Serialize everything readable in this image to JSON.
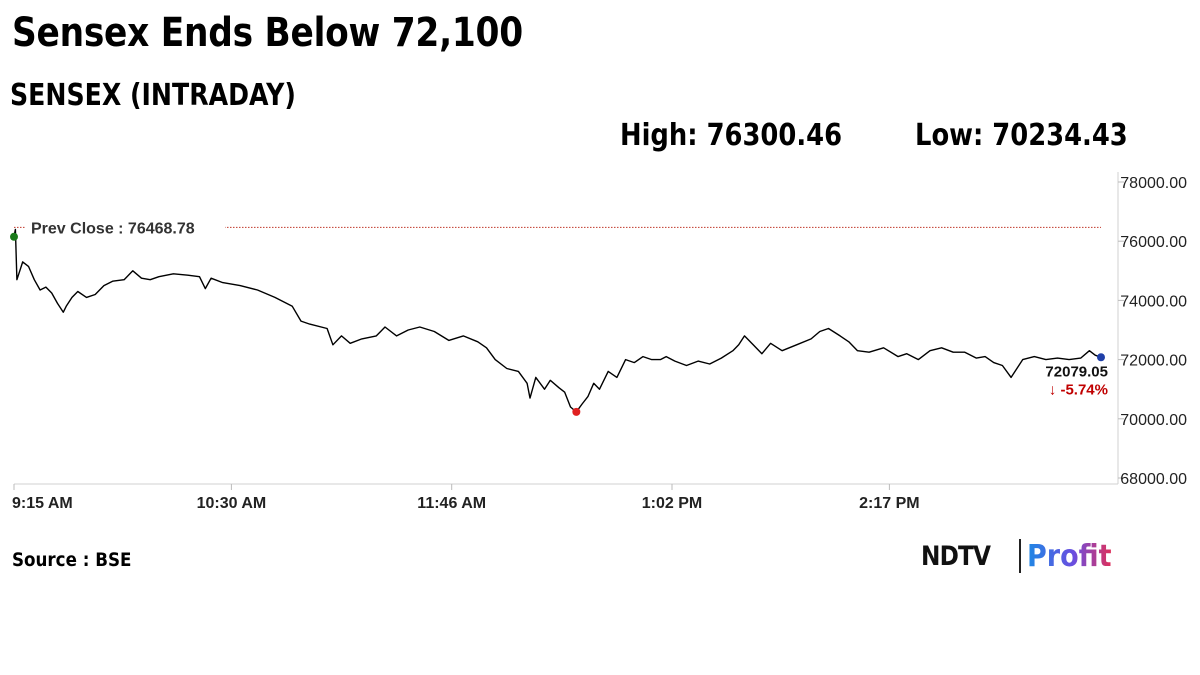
{
  "headline": "Sensex Ends Below 72,100",
  "source_label": "Source : BSE",
  "brand": {
    "name": "NDTV",
    "product": "Profit"
  },
  "colors": {
    "line": "#000000",
    "prev_close_line": "#c0392b",
    "open_marker": "#1a7a1a",
    "low_marker": "#e02020",
    "last_marker": "#1f3fa8",
    "change_text": "#c00000",
    "axis": "#d0d0d0"
  },
  "chart_data": {
    "type": "line",
    "title": "SENSEX (INTRADAY)",
    "high_label": "High: 76300.46",
    "low_label": "Low: 70234.43",
    "xlabel": "",
    "ylabel": "",
    "ylim": [
      68000,
      78000
    ],
    "y_ticks": [
      "78000.00",
      "76000.00",
      "74000.00",
      "72000.00",
      "70000.00",
      "68000.00"
    ],
    "x_ticks": [
      "9:15 AM",
      "10:30 AM",
      "11:46 AM",
      "1:02 PM",
      "2:17 PM"
    ],
    "x_tick_minutes": [
      0,
      75,
      151,
      227,
      302
    ],
    "x_range_minutes": [
      0,
      375
    ],
    "grid": false,
    "prev_close": {
      "label": "Prev Close : 76468.78",
      "value": 76468.78
    },
    "last": {
      "value_label": "72079.05",
      "change_label": "-5.74%",
      "change_arrow": "↓"
    },
    "series": [
      {
        "points": [
          [
            0,
            76150
          ],
          [
            0.5,
            76400
          ],
          [
            1,
            74700
          ],
          [
            2,
            75000
          ],
          [
            3,
            75300
          ],
          [
            5,
            75150
          ],
          [
            7,
            74700
          ],
          [
            9,
            74350
          ],
          [
            11,
            74450
          ],
          [
            13,
            74250
          ],
          [
            15,
            73900
          ],
          [
            17,
            73600
          ],
          [
            18,
            73800
          ],
          [
            20,
            74100
          ],
          [
            22,
            74300
          ],
          [
            25,
            74100
          ],
          [
            28,
            74200
          ],
          [
            31,
            74500
          ],
          [
            34,
            74650
          ],
          [
            38,
            74700
          ],
          [
            41,
            75000
          ],
          [
            44,
            74750
          ],
          [
            47,
            74700
          ],
          [
            50,
            74800
          ],
          [
            55,
            74900
          ],
          [
            60,
            74850
          ],
          [
            64,
            74800
          ],
          [
            66,
            74400
          ],
          [
            68,
            74750
          ],
          [
            72,
            74600
          ],
          [
            78,
            74500
          ],
          [
            84,
            74350
          ],
          [
            90,
            74100
          ],
          [
            96,
            73800
          ],
          [
            99,
            73300
          ],
          [
            102,
            73200
          ],
          [
            108,
            73050
          ],
          [
            110,
            72500
          ],
          [
            113,
            72800
          ],
          [
            116,
            72550
          ],
          [
            120,
            72700
          ],
          [
            125,
            72800
          ],
          [
            128,
            73100
          ],
          [
            132,
            72800
          ],
          [
            136,
            73000
          ],
          [
            140,
            73100
          ],
          [
            145,
            72950
          ],
          [
            150,
            72650
          ],
          [
            155,
            72800
          ],
          [
            160,
            72600
          ],
          [
            163,
            72400
          ],
          [
            166,
            72000
          ],
          [
            170,
            71700
          ],
          [
            174,
            71600
          ],
          [
            177,
            71200
          ],
          [
            178,
            70700
          ],
          [
            180,
            71400
          ],
          [
            183,
            71000
          ],
          [
            185,
            71300
          ],
          [
            188,
            71050
          ],
          [
            190,
            70900
          ],
          [
            192,
            70400
          ],
          [
            194,
            70234
          ],
          [
            196,
            70500
          ],
          [
            198,
            70750
          ],
          [
            200,
            71200
          ],
          [
            202,
            71000
          ],
          [
            205,
            71600
          ],
          [
            208,
            71400
          ],
          [
            211,
            72000
          ],
          [
            214,
            71900
          ],
          [
            217,
            72100
          ],
          [
            220,
            72000
          ],
          [
            223,
            72000
          ],
          [
            225,
            72100
          ],
          [
            228,
            71950
          ],
          [
            232,
            71800
          ],
          [
            236,
            71950
          ],
          [
            240,
            71850
          ],
          [
            244,
            72050
          ],
          [
            248,
            72300
          ],
          [
            250,
            72500
          ],
          [
            252,
            72800
          ],
          [
            255,
            72500
          ],
          [
            258,
            72200
          ],
          [
            261,
            72550
          ],
          [
            265,
            72300
          ],
          [
            270,
            72500
          ],
          [
            275,
            72700
          ],
          [
            278,
            72950
          ],
          [
            281,
            73050
          ],
          [
            285,
            72800
          ],
          [
            288,
            72600
          ],
          [
            291,
            72300
          ],
          [
            295,
            72250
          ],
          [
            300,
            72400
          ],
          [
            305,
            72100
          ],
          [
            308,
            72200
          ],
          [
            312,
            72000
          ],
          [
            316,
            72300
          ],
          [
            320,
            72400
          ],
          [
            324,
            72250
          ],
          [
            328,
            72250
          ],
          [
            332,
            72050
          ],
          [
            335,
            72100
          ],
          [
            338,
            71900
          ],
          [
            341,
            71800
          ],
          [
            344,
            71400
          ],
          [
            346,
            71700
          ],
          [
            348,
            72000
          ],
          [
            352,
            72100
          ],
          [
            356,
            72000
          ],
          [
            360,
            72050
          ],
          [
            364,
            72000
          ],
          [
            368,
            72050
          ],
          [
            371,
            72300
          ],
          [
            373,
            72150
          ],
          [
            375,
            72079.05
          ]
        ]
      }
    ],
    "markers": {
      "open": [
        0,
        76150
      ],
      "low": [
        194,
        70234.43
      ],
      "last": [
        375,
        72079.05
      ]
    }
  }
}
